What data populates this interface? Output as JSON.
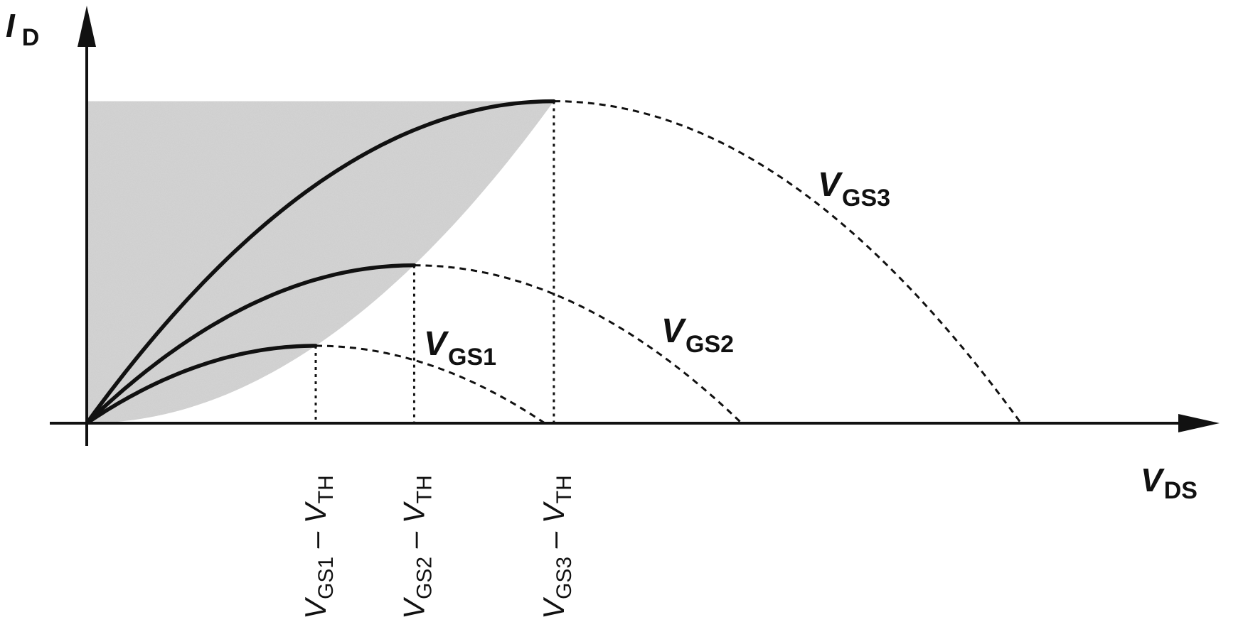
{
  "chart_data": {
    "type": "line",
    "title": "",
    "xlabel": {
      "main": "V",
      "sub": "DS"
    },
    "ylabel": {
      "main": "I",
      "sub": "D"
    },
    "grid": false,
    "shaded_region": "triode",
    "x_unit": "V_GS1 - V_TH",
    "y_unit": "I_peak(V_GS1)",
    "xlim": [
      0,
      5
    ],
    "ylim": [
      0,
      4.5
    ],
    "overdrive": [
      1,
      1.43,
      2.04
    ],
    "series": [
      {
        "name": "V_GS1",
        "label_main": "V",
        "label_sub": "GS1",
        "overdrive": 1.0,
        "x_peak": 1.0,
        "y_peak": 1.0,
        "x_zero": 2.0
      },
      {
        "name": "V_GS2",
        "label_main": "V",
        "label_sub": "GS2",
        "overdrive": 1.43,
        "x_peak": 1.43,
        "y_peak": 2.04,
        "x_zero": 2.86
      },
      {
        "name": "V_GS3",
        "label_main": "V",
        "label_sub": "GS3",
        "overdrive": 2.04,
        "x_peak": 2.04,
        "y_peak": 4.16,
        "x_zero": 4.08
      }
    ],
    "x_ticks": [
      {
        "x": 1.0,
        "parts": [
          {
            "t": "V",
            "s": "main"
          },
          {
            "t": "GS1",
            "s": "sub"
          },
          {
            "t": " – ",
            "s": "plain"
          },
          {
            "t": "V",
            "s": "main"
          },
          {
            "t": "TH",
            "s": "sub"
          }
        ]
      },
      {
        "x": 1.43,
        "parts": [
          {
            "t": "V",
            "s": "main"
          },
          {
            "t": "GS2",
            "s": "sub"
          },
          {
            "t": " – ",
            "s": "plain"
          },
          {
            "t": "V",
            "s": "main"
          },
          {
            "t": "TH",
            "s": "sub"
          }
        ]
      },
      {
        "x": 2.04,
        "parts": [
          {
            "t": "V",
            "s": "main"
          },
          {
            "t": "GS3",
            "s": "sub"
          },
          {
            "t": " – ",
            "s": "plain"
          },
          {
            "t": "V",
            "s": "main"
          },
          {
            "t": "TH",
            "s": "sub"
          }
        ]
      }
    ],
    "colors": {
      "curve": "#111111",
      "shade": "#d6d6d6",
      "axis": "#111111"
    }
  }
}
